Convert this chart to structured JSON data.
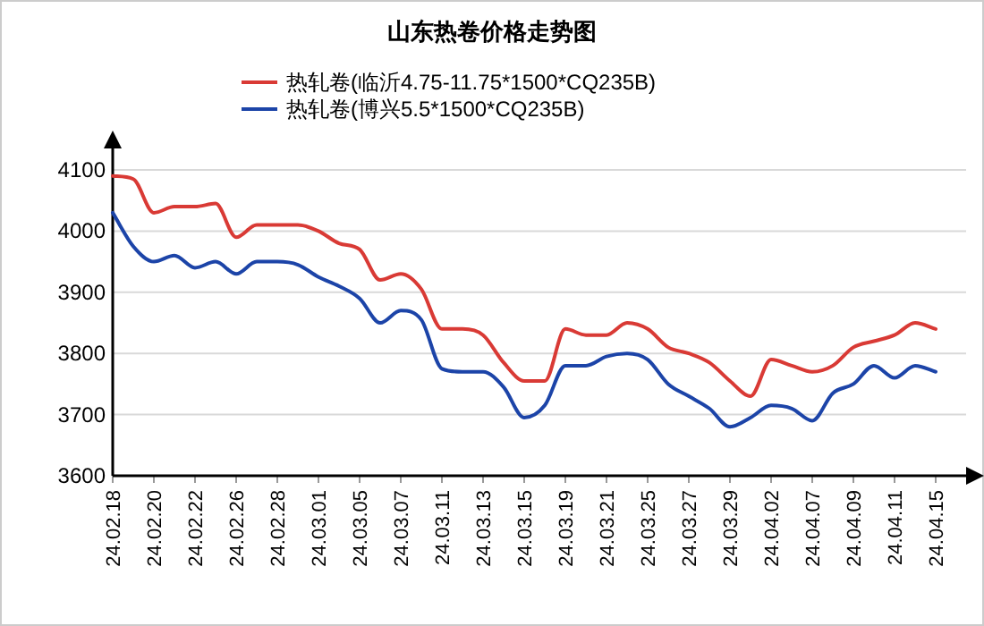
{
  "chart_data": {
    "type": "line",
    "title": "山东热卷价格走势图",
    "categories": [
      "24.02.18",
      null,
      "24.02.20",
      null,
      "24.02.22",
      null,
      "24.02.26",
      null,
      "24.02.28",
      null,
      "24.03.01",
      null,
      "24.03.05",
      null,
      "24.03.07",
      null,
      "24.03.11",
      null,
      "24.03.13",
      null,
      "24.03.15",
      null,
      "24.03.19",
      null,
      "24.03.21",
      null,
      "24.03.25",
      null,
      "24.03.27",
      null,
      "24.03.29",
      null,
      "24.04.02",
      null,
      "24.04.07",
      null,
      "24.04.09",
      null,
      "24.04.11",
      null,
      "24.04.15"
    ],
    "series": [
      {
        "name": "热轧卷(临沂4.75-11.75*1500*CQ235B)",
        "color": "#d93a35",
        "values": [
          4090,
          4085,
          4030,
          4040,
          4040,
          4045,
          3990,
          4010,
          4010,
          4010,
          4000,
          3980,
          3970,
          3920,
          3930,
          3905,
          3840,
          3840,
          3830,
          3785,
          3755,
          3755,
          3840,
          3830,
          3830,
          3850,
          3840,
          3810,
          3800,
          3785,
          3755,
          3730,
          3790,
          3780,
          3770,
          3780,
          3810,
          3820,
          3830,
          3850,
          3840
        ]
      },
      {
        "name": "热轧卷(博兴5.5*1500*CQ235B)",
        "color": "#1c44a8",
        "values": [
          4030,
          3975,
          3950,
          3960,
          3940,
          3950,
          3930,
          3950,
          3950,
          3945,
          3925,
          3910,
          3890,
          3850,
          3870,
          3855,
          3775,
          3770,
          3770,
          3745,
          3695,
          3715,
          3780,
          3780,
          3795,
          3800,
          3790,
          3750,
          3730,
          3710,
          3680,
          3695,
          3715,
          3710,
          3690,
          3735,
          3750,
          3780,
          3760,
          3780,
          3770
        ]
      }
    ],
    "ylim": [
      3600,
      4100
    ],
    "yticks": [
      3600,
      3700,
      3800,
      3900,
      4000,
      4100
    ],
    "grid": "y",
    "legend": "top",
    "marker": "none",
    "line_style": "solid"
  }
}
